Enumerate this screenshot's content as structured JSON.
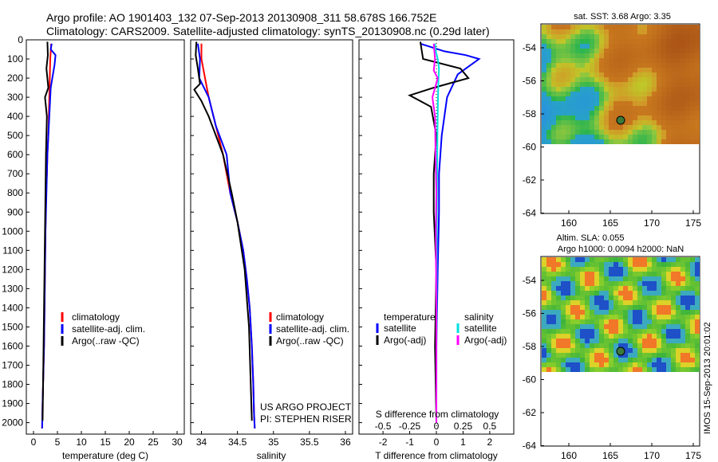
{
  "title": {
    "line1": "Argo profile: AO 1901403_132 07-Sep-2013 20130908_311 58.678S 166.752E",
    "line2": "Climatology: CARS2009. Satellite-adjusted climatology: synTS_20130908.nc (0.29d later)"
  },
  "colors": {
    "climatology": "#ff0000",
    "satellite": "#0000ff",
    "argo": "#000000",
    "salinity_satellite": "#00e0e0",
    "salinity_argo": "#ff00ff"
  },
  "depth_axis": {
    "ticks": [
      "0",
      "100",
      "200",
      "300",
      "400",
      "500",
      "600",
      "700",
      "800",
      "900",
      "1000",
      "1100",
      "1200",
      "1300",
      "1400",
      "1500",
      "1600",
      "1700",
      "1800",
      "1900",
      "2000"
    ],
    "ylim": [
      0,
      2060
    ]
  },
  "panels": {
    "temperature": {
      "xlabel": "temperature (deg C)",
      "xticks": [
        "0",
        "5",
        "10",
        "15",
        "20",
        "25",
        "30"
      ],
      "legend": [
        "climatology",
        "satellite-adj. clim.",
        "Argo(..raw -QC)"
      ]
    },
    "salinity": {
      "xlabel": "salinity",
      "xticks": [
        "34",
        "34.5",
        "35",
        "35.5",
        "36"
      ],
      "legend": [
        "climatology",
        "satellite-adj. clim.",
        "Argo(..raw -QC)"
      ],
      "note1": "US ARGO PROJECT",
      "note2": "PI: STEPHEN RISER"
    },
    "difference": {
      "xlabel": "T difference from climatology",
      "top_label": "S difference from climatology",
      "s_ticks": [
        "-0.5",
        "-0.25",
        "0",
        "0.25",
        "0.5"
      ],
      "t_ticks": [
        "-2",
        "-1",
        "0",
        "1",
        "2"
      ],
      "legend_t_header": "temperature",
      "legend_s_header": "salinity",
      "legend_t": [
        "satellite",
        "Argo(-adj)"
      ],
      "legend_s": [
        "satellite",
        "Argo(-adj)"
      ]
    }
  },
  "maps": {
    "sst": {
      "title": "sat. SST: 3.68 Argo: 3.35",
      "yticks": [
        "-54",
        "-56",
        "-58",
        "-60",
        "-62",
        "-64"
      ],
      "xticks": [
        "160",
        "165",
        "170",
        "175"
      ]
    },
    "sla": {
      "title1": "Altim. SLA: 0.055",
      "title2": "Argo h1000: 0.0094 h2000: NaN",
      "yticks": [
        "-54",
        "-56",
        "-58",
        "-60",
        "-62",
        "-64"
      ],
      "xticks": [
        "160",
        "165",
        "170",
        "175"
      ]
    }
  },
  "stamp": "IMOS 15-Sep-2013 20:01:02",
  "chart_data": [
    {
      "type": "line",
      "name": "temperature profile",
      "xlabel": "temperature (deg C)",
      "ylabel": "",
      "xlim": [
        -1.5,
        31.5
      ],
      "ylim": [
        2060,
        0
      ],
      "series": [
        {
          "name": "climatology",
          "x": [
            3.7,
            3.5,
            3.4,
            3.3,
            3.2,
            3.1,
            2.9,
            2.8,
            2.6,
            2.5,
            2.4,
            2.3,
            2.2,
            2.1,
            2.0,
            1.9,
            1.8
          ],
          "y": [
            20,
            100,
            200,
            300,
            400,
            500,
            600,
            700,
            800,
            1000,
            1200,
            1400,
            1600,
            1700,
            1800,
            1900,
            2030
          ]
        },
        {
          "name": "satellite-adj. clim.",
          "x": [
            3.8,
            3.6,
            4.6,
            4.4,
            3.6,
            3.3,
            3.1,
            2.9,
            2.7,
            2.5,
            2.4,
            2.3,
            2.2,
            2.1,
            2.0,
            1.9,
            1.8
          ],
          "y": [
            20,
            50,
            80,
            130,
            250,
            400,
            500,
            600,
            800,
            1000,
            1200,
            1400,
            1600,
            1700,
            1800,
            1900,
            2030
          ]
        },
        {
          "name": "Argo(..raw -QC)",
          "x": [
            2.9,
            3.0,
            2.7,
            3.1,
            2.4,
            2.8,
            2.6,
            2.5,
            2.4,
            2.3,
            2.2,
            2.1,
            2.0,
            1.9
          ],
          "y": [
            10,
            80,
            150,
            250,
            300,
            400,
            600,
            800,
            1000,
            1200,
            1400,
            1600,
            1800,
            1990
          ]
        }
      ]
    },
    {
      "type": "line",
      "name": "salinity profile",
      "xlabel": "salinity",
      "ylabel": "",
      "xlim": [
        33.85,
        36.1
      ],
      "ylim": [
        2060,
        0
      ],
      "series": [
        {
          "name": "climatology",
          "x": [
            34.0,
            34.0,
            34.05,
            34.1,
            34.2,
            34.3,
            34.4,
            34.5,
            34.58,
            34.63,
            34.67,
            34.7,
            34.72,
            34.73,
            34.74
          ],
          "y": [
            20,
            100,
            200,
            300,
            450,
            600,
            800,
            950,
            1100,
            1250,
            1400,
            1600,
            1800,
            1950,
            2030
          ]
        },
        {
          "name": "satellite-adj. clim.",
          "x": [
            33.95,
            33.98,
            33.97,
            34.1,
            34.2,
            34.35,
            34.4,
            34.5,
            34.58,
            34.63,
            34.67,
            34.7,
            34.72,
            34.73,
            34.74
          ],
          "y": [
            20,
            100,
            200,
            300,
            450,
            600,
            800,
            950,
            1100,
            1250,
            1400,
            1600,
            1800,
            1950,
            2030
          ]
        },
        {
          "name": "Argo(..raw -QC)",
          "x": [
            33.93,
            33.92,
            33.95,
            33.98,
            33.9,
            34.0,
            34.1,
            34.2,
            34.3,
            34.42,
            34.5,
            34.6,
            34.66,
            34.7
          ],
          "y": [
            10,
            80,
            150,
            230,
            260,
            320,
            400,
            500,
            600,
            800,
            950,
            1200,
            1500,
            1990
          ]
        }
      ]
    },
    {
      "type": "line",
      "name": "difference from climatology",
      "xlabel": "T difference from climatology",
      "ylabel": "",
      "xlim": [
        -2.9,
        2.9
      ],
      "ylim": [
        2060,
        0
      ],
      "series": [
        {
          "name": "temperature satellite",
          "x": [
            -0.6,
            0.3,
            1.1,
            1.6,
            0.8,
            0.4,
            0.2,
            0.1,
            0.1,
            0.05,
            0.0,
            0.0
          ],
          "y": [
            20,
            60,
            80,
            100,
            180,
            300,
            500,
            700,
            900,
            1200,
            1600,
            2000
          ]
        },
        {
          "name": "temperature Argo(-adj)",
          "x": [
            -0.6,
            -0.5,
            0.9,
            1.2,
            -0.1,
            -1.0,
            -0.2,
            0.0,
            -0.1,
            -0.1,
            0.0,
            -0.05,
            0.0
          ],
          "y": [
            10,
            100,
            150,
            200,
            250,
            290,
            350,
            500,
            700,
            900,
            1200,
            1600,
            2000
          ]
        },
        {
          "name": "salinity satellite",
          "x": [
            -0.05,
            -0.02,
            0.05,
            0.1,
            0.08,
            0.06,
            0.04,
            0.03,
            0.02,
            0.01,
            0.0
          ],
          "y": [
            20,
            60,
            100,
            150,
            200,
            300,
            500,
            700,
            900,
            1300,
            2000
          ]
        },
        {
          "name": "salinity Argo(-adj)",
          "x": [
            -0.1,
            -0.05,
            -0.1,
            0.05,
            -0.15,
            -0.05,
            -0.03,
            0.0,
            -0.02,
            0.0,
            0.0
          ],
          "y": [
            20,
            100,
            160,
            200,
            300,
            400,
            600,
            800,
            1000,
            1400,
            2000
          ]
        }
      ]
    }
  ]
}
